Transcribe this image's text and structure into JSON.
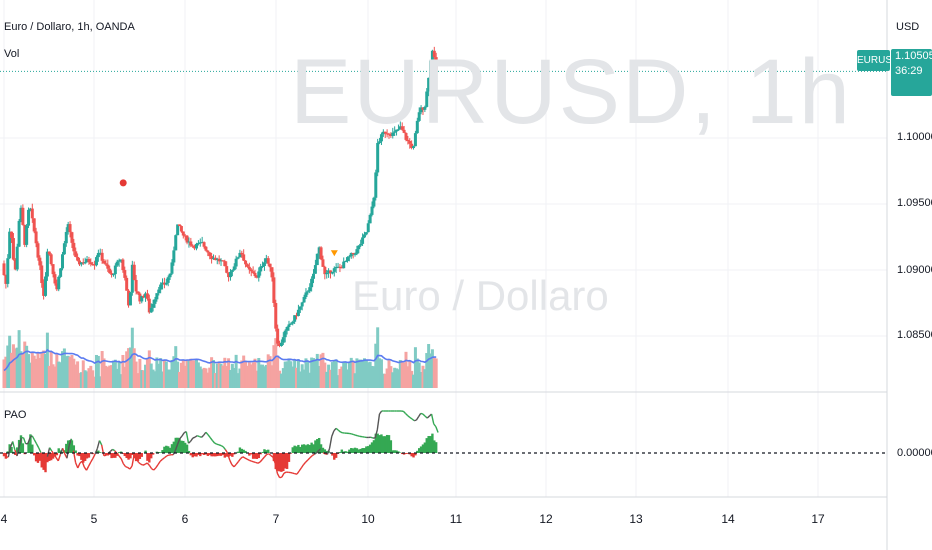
{
  "header": {
    "symbol_title": "Euro / Dollaro, 1h, OANDA",
    "volume_label": "Vol",
    "indicator_label": "PAO",
    "currency_label": "USD"
  },
  "watermark": {
    "main": "EURUSD, 1h",
    "sub": "Euro / Dollaro"
  },
  "price_badge": {
    "symbol": "EURUSD",
    "price": "1.10505",
    "countdown": "36:29",
    "color": "#26a69a"
  },
  "colors": {
    "up": "#26a69a",
    "down": "#ef5350",
    "volume_up": "#80cbc4",
    "volume_down": "#f5a3a1",
    "volume_ma": "#5b7bf0",
    "osc_pos": "#34a853",
    "osc_neg": "#e53935",
    "osc_line": "#555555"
  },
  "chart_data": {
    "type": "candlestick",
    "instrument": "EURUSD",
    "timeframe": "1h",
    "y_axis": {
      "ticks": [
        "1.10000",
        "1.09500",
        "1.09000",
        "1.08500"
      ],
      "range": [
        1.0825,
        1.1085
      ]
    },
    "x_axis": {
      "ticks": [
        "4",
        "5",
        "6",
        "7",
        "10",
        "11",
        "12",
        "13",
        "14",
        "17"
      ]
    },
    "last_price": 1.10505,
    "oscillator": {
      "name": "PAO",
      "ticks": [
        "0.00000"
      ],
      "zero_level": 0
    },
    "price_path": [
      [
        0,
        1.0905
      ],
      [
        0.04,
        1.0888
      ],
      [
        0.09,
        1.0937
      ],
      [
        0.14,
        1.0895
      ],
      [
        0.2,
        1.095
      ],
      [
        0.25,
        1.092
      ],
      [
        0.3,
        1.095
      ],
      [
        0.38,
        1.0918
      ],
      [
        0.46,
        1.088
      ],
      [
        0.5,
        1.0918
      ],
      [
        0.6,
        1.0885
      ],
      [
        0.72,
        1.0935
      ],
      [
        0.82,
        1.0905
      ],
      [
        0.95,
        1.0907
      ],
      [
        1.02,
        1.0905
      ],
      [
        1.05,
        1.0915
      ],
      [
        1.2,
        1.0895
      ],
      [
        1.3,
        1.091
      ],
      [
        1.35,
        1.0893
      ],
      [
        1.4,
        1.087
      ],
      [
        1.43,
        1.0903
      ],
      [
        1.47,
        1.0885
      ],
      [
        1.52,
        1.0877
      ],
      [
        1.58,
        1.0883
      ],
      [
        1.62,
        1.0868
      ],
      [
        1.72,
        1.0887
      ],
      [
        1.8,
        1.089
      ],
      [
        1.86,
        1.09
      ],
      [
        1.92,
        1.0935
      ],
      [
        2.0,
        1.0925
      ],
      [
        2.1,
        1.0918
      ],
      [
        2.2,
        1.092
      ],
      [
        2.3,
        1.091
      ],
      [
        2.42,
        1.0906
      ],
      [
        2.48,
        1.0895
      ],
      [
        2.56,
        1.0905
      ],
      [
        2.62,
        1.0915
      ],
      [
        2.7,
        1.09
      ],
      [
        2.8,
        1.0895
      ],
      [
        2.9,
        1.091
      ],
      [
        2.97,
        1.0895
      ],
      [
        3.0,
        1.086
      ],
      [
        3.04,
        1.084
      ],
      [
        3.1,
        1.0852
      ],
      [
        3.2,
        1.0862
      ],
      [
        3.3,
        1.0875
      ],
      [
        3.42,
        1.0895
      ],
      [
        3.48,
        1.0918
      ],
      [
        3.55,
        1.0895
      ],
      [
        3.62,
        1.09
      ],
      [
        3.72,
        1.0902
      ],
      [
        3.82,
        1.091
      ],
      [
        3.9,
        1.0915
      ],
      [
        4.0,
        1.0928
      ],
      [
        4.05,
        1.0942
      ],
      [
        4.1,
        1.0962
      ],
      [
        4.12,
        1.0995
      ],
      [
        4.2,
        1.1005
      ],
      [
        4.3,
        1.1003
      ],
      [
        4.38,
        1.1008
      ],
      [
        4.45,
        1.0998
      ],
      [
        4.52,
        1.0992
      ],
      [
        4.58,
        1.102
      ],
      [
        4.65,
        1.1025
      ],
      [
        4.7,
        1.1055
      ],
      [
        4.73,
        1.1068
      ],
      [
        4.77,
        1.105
      ]
    ]
  }
}
